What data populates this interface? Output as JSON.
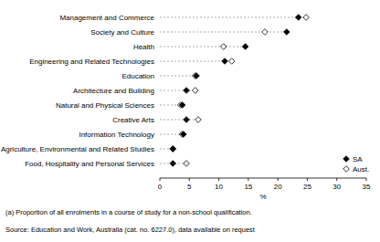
{
  "chart_data": {
    "type": "dot",
    "orientation": "horizontal",
    "categories": [
      "Management and Commerce",
      "Society and Culture",
      "Health",
      "Engineering and Related Technologies",
      "Education",
      "Architecture and Building",
      "Natural and Physical Sciences",
      "Creative Arts",
      "Information Technology",
      "Agriculture, Environmental and Related Studies",
      "Food, Hospitality and Personal Services"
    ],
    "series": [
      {
        "name": "SA",
        "color": "#000000",
        "marker": "diamond",
        "values": [
          23.5,
          21.5,
          14.5,
          11.0,
          6.2,
          4.5,
          3.8,
          4.5,
          4.0,
          2.2,
          2.2
        ]
      },
      {
        "name": "Aust.",
        "color": "#000000",
        "marker": "diamond-open",
        "values": [
          24.8,
          17.8,
          10.8,
          12.2,
          6.0,
          6.0,
          3.5,
          6.5,
          3.8,
          2.2,
          4.5
        ]
      }
    ],
    "x_label": "%",
    "xlim": [
      0,
      35
    ],
    "xticks": [
      0,
      5,
      10,
      15,
      20,
      25,
      30,
      35
    ],
    "grid": false,
    "legend": "lower right",
    "footnote": "(a) Proportion of all enrolments in a course of study for a non-school qualification.",
    "source": "Source: Education and Work, Australia (cat. no. 6227.0), data available on request"
  }
}
